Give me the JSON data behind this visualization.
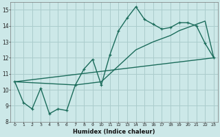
{
  "xlabel": "Humidex (Indice chaleur)",
  "bg_color": "#cce8e8",
  "grid_color": "#aacccc",
  "line_color": "#1a6b5a",
  "xlim": [
    -0.5,
    23.5
  ],
  "ylim": [
    8,
    15.5
  ],
  "xticks": [
    0,
    1,
    2,
    3,
    4,
    5,
    6,
    7,
    8,
    9,
    10,
    11,
    12,
    13,
    14,
    15,
    16,
    17,
    18,
    19,
    20,
    21,
    22,
    23
  ],
  "yticks": [
    8,
    9,
    10,
    11,
    12,
    13,
    14,
    15
  ],
  "line1_x": [
    0,
    1,
    2,
    3,
    4,
    5,
    6,
    7,
    8,
    9,
    10,
    11,
    12,
    13,
    14,
    15,
    16,
    17,
    18,
    19,
    20,
    21,
    22,
    23
  ],
  "line1_y": [
    10.5,
    9.2,
    8.8,
    10.1,
    8.5,
    8.8,
    8.7,
    10.3,
    11.3,
    11.9,
    10.3,
    12.2,
    13.7,
    14.5,
    15.2,
    14.4,
    14.1,
    13.8,
    13.9,
    14.2,
    14.2,
    14.0,
    12.9,
    12.0
  ],
  "line2_x": [
    0,
    23
  ],
  "line2_y": [
    10.5,
    12.0
  ],
  "line3_x": [
    0,
    7,
    10,
    14,
    16,
    18,
    19,
    20,
    21,
    22,
    23
  ],
  "line3_y": [
    10.5,
    10.3,
    10.5,
    12.5,
    13.0,
    13.4,
    13.7,
    13.9,
    14.1,
    14.3,
    12.0
  ]
}
